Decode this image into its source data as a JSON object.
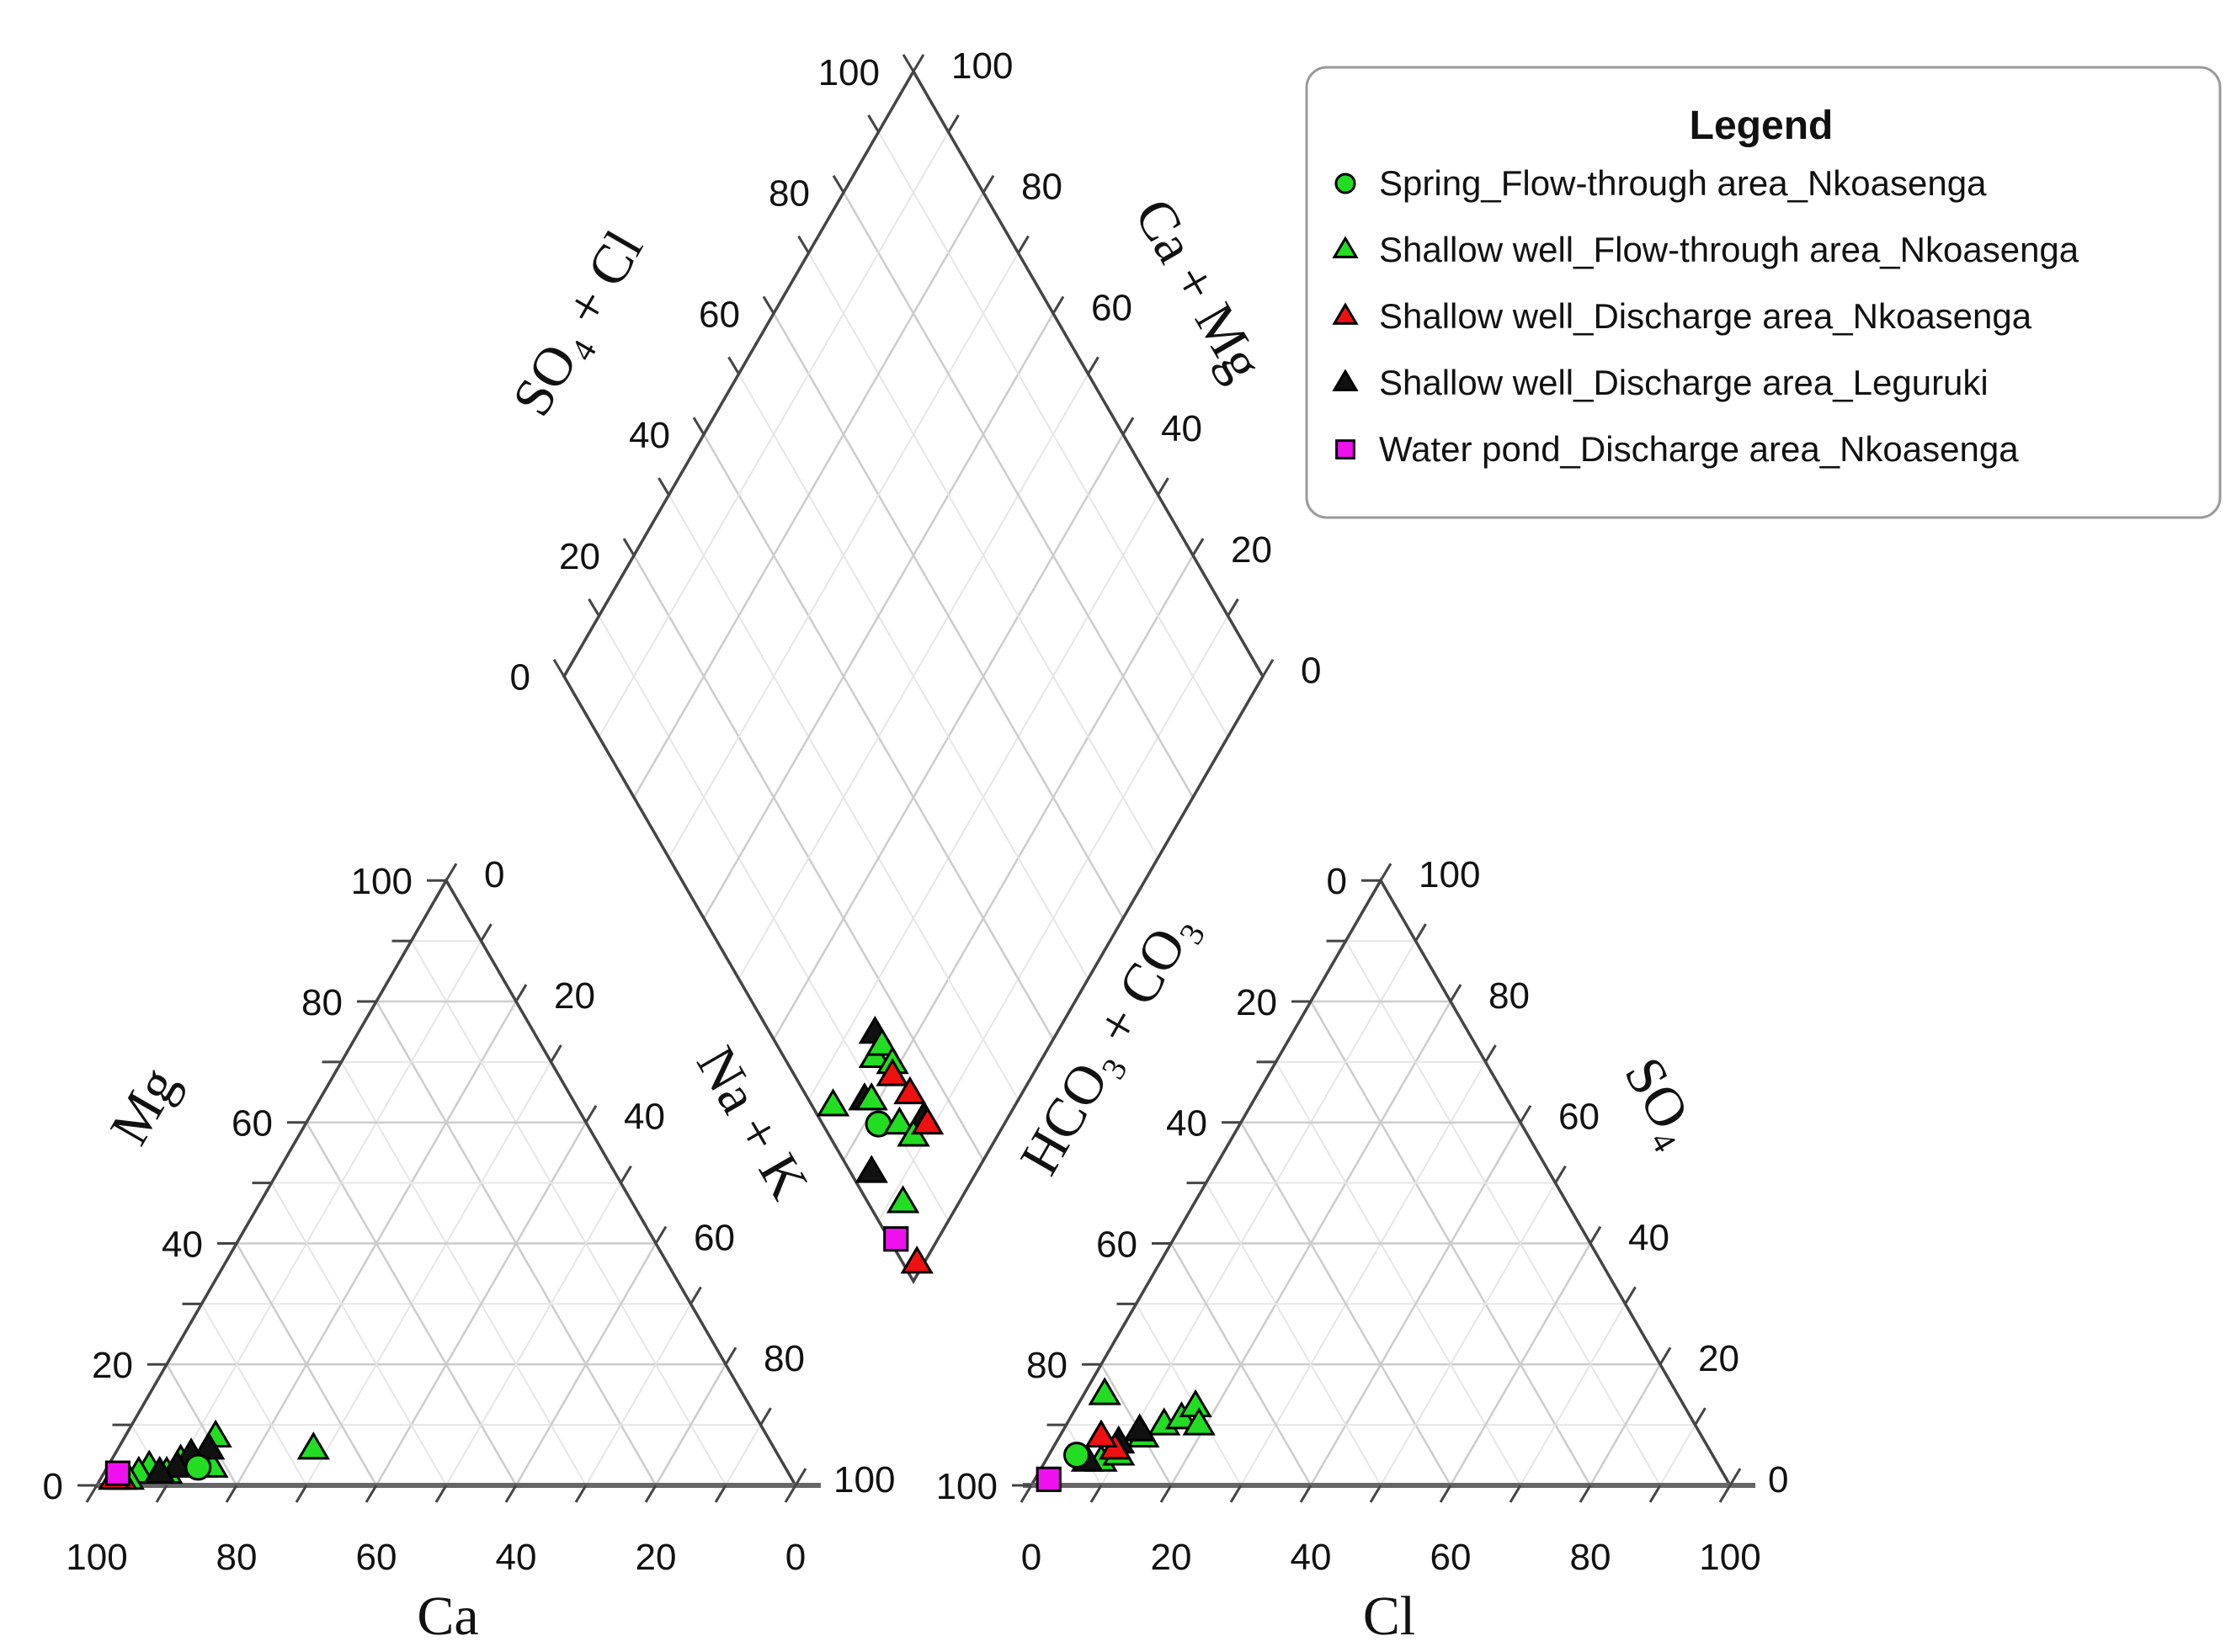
{
  "chart_data": {
    "type": "scatter",
    "diagram": "piper",
    "axes": {
      "cation_bottom": "Ca",
      "cation_left": "Mg",
      "cation_right": "Na + K",
      "anion_bottom": "Cl",
      "anion_left": "HCO₃ + CO₃",
      "anion_right": "SO₄",
      "diamond_left": "SO₄ + Cl",
      "diamond_right": "Ca + Mg"
    },
    "ticks": [
      "0",
      "20",
      "40",
      "60",
      "80",
      "100"
    ],
    "grid": true,
    "legend": {
      "title": "Legend",
      "position": "top-right",
      "items": [
        {
          "label": "Spring_Flow-through area_Nkoasenga",
          "marker": "circle",
          "color": "#22dd22"
        },
        {
          "label": "Shallow well_Flow-through area_Nkoasenga",
          "marker": "triangle",
          "color": "#22dd22"
        },
        {
          "label": "Shallow well_Discharge area_Nkoasenga",
          "marker": "triangle",
          "color": "#ee1111"
        },
        {
          "label": "Shallow well_Discharge area_Leguruki",
          "marker": "triangle",
          "color": "#111111"
        },
        {
          "label": "Water pond_Discharge area_Nkoasenga",
          "marker": "square",
          "color": "#ee11ee"
        }
      ]
    },
    "samples": [
      {
        "series": 1,
        "ca": 66,
        "mg": 6,
        "cl": 3,
        "so4": 15
      },
      {
        "series": 1,
        "ca": 79,
        "mg": 8,
        "cl": 8,
        "so4": 4
      },
      {
        "series": 1,
        "ca": 82,
        "mg": 3,
        "cl": 10,
        "so4": 5
      },
      {
        "series": 1,
        "ca": 86,
        "mg": 4,
        "cl": 12,
        "so4": 8
      },
      {
        "series": 1,
        "ca": 89,
        "mg": 2,
        "cl": 14,
        "so4": 10
      },
      {
        "series": 1,
        "ca": 91,
        "mg": 3,
        "cl": 16,
        "so4": 11
      },
      {
        "series": 1,
        "ca": 93,
        "mg": 2,
        "cl": 17,
        "so4": 13
      },
      {
        "series": 1,
        "ca": 95,
        "mg": 1,
        "cl": 19,
        "so4": 10
      },
      {
        "series": 3,
        "ca": 81,
        "mg": 6,
        "cl": 6,
        "so4": 8
      },
      {
        "series": 3,
        "ca": 84,
        "mg": 5,
        "cl": 9,
        "so4": 7
      },
      {
        "series": 3,
        "ca": 87,
        "mg": 3,
        "cl": 11,
        "so4": 9
      },
      {
        "series": 3,
        "ca": 90,
        "mg": 2,
        "cl": 6,
        "so4": 4
      },
      {
        "series": 0,
        "ca": 84,
        "mg": 3,
        "cl": 4,
        "so4": 5
      },
      {
        "series": 2,
        "ca": 96,
        "mg": 1,
        "cl": 9,
        "so4": 6
      },
      {
        "series": 2,
        "ca": 97,
        "mg": 1,
        "cl": 6,
        "so4": 8
      },
      {
        "series": 4,
        "ca": 96,
        "mg": 2,
        "cl": 2,
        "so4": 1
      }
    ],
    "diamond_points": [
      {
        "series": 1,
        "so4cl": 26,
        "camg": 3
      },
      {
        "series": 3,
        "so4cl": 22,
        "camg": 8
      },
      {
        "series": 1,
        "so4cl": 21,
        "camg": 9
      },
      {
        "series": 3,
        "so4cl": 26,
        "camg": 15
      },
      {
        "series": 3,
        "so4cl": 12,
        "camg": 15
      },
      {
        "series": 1,
        "so4cl": 24,
        "camg": 13
      },
      {
        "series": 3,
        "so4cl": 15,
        "camg": 3
      },
      {
        "series": 0,
        "so4cl": 18,
        "camg": 8
      },
      {
        "series": 1,
        "so4cl": 15,
        "camg": 11
      },
      {
        "series": 1,
        "so4cl": 12,
        "camg": 12
      },
      {
        "series": 1,
        "so4cl": 24,
        "camg": 15
      },
      {
        "series": 1,
        "so4cl": 21,
        "camg": 15
      },
      {
        "series": 2,
        "so4cl": 20,
        "camg": 14
      },
      {
        "series": 2,
        "so4cl": 16,
        "camg": 15
      },
      {
        "series": 2,
        "so4cl": 11,
        "camg": 15
      },
      {
        "series": 1,
        "so4cl": 8,
        "camg": 5
      },
      {
        "series": 2,
        "so4cl": 1,
        "camg": 2
      },
      {
        "series": 4,
        "so4cl": 6,
        "camg": 1
      }
    ]
  }
}
